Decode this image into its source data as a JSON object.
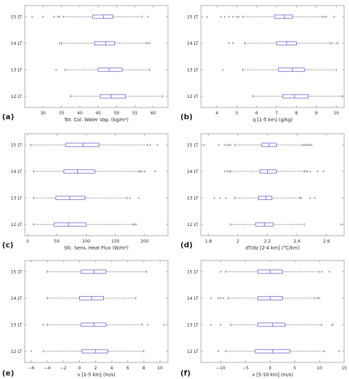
{
  "categories": [
    "12 LT",
    "13 LT",
    "14 LT",
    "15 LT"
  ],
  "colors": {
    "box": "#6a5acd",
    "median": "#6a5acd",
    "whisker": "#555555",
    "outlier": "#555555",
    "frame": "#999999"
  },
  "panels": [
    {
      "tag": "(a)",
      "xlabel": "Tot. Col. Water Vap. (kg/m²)",
      "xlim": [
        25,
        64
      ],
      "ticks": [
        30,
        35,
        40,
        45,
        50,
        55,
        60
      ],
      "boxes": [
        {
          "cat": "12 LT",
          "wlo": 37.5,
          "q1": 45.5,
          "med": 48.5,
          "q3": 52.5,
          "whi": 62.5,
          "outliers": []
        },
        {
          "cat": "13 LT",
          "wlo": 36.0,
          "q1": 45.0,
          "med": 48.0,
          "q3": 51.5,
          "whi": 59.0,
          "outliers": [
            33.5
          ]
        },
        {
          "cat": "14 LT",
          "wlo": 35.0,
          "q1": 44.0,
          "med": 47.0,
          "q3": 49.5,
          "whi": 58.0,
          "outliers": [
            34.5,
            58.5,
            59.0
          ]
        },
        {
          "cat": "15 LT",
          "wlo": 35.5,
          "q1": 43.5,
          "med": 46.5,
          "q3": 49.0,
          "whi": 57.0,
          "outliers": [
            27.0,
            30.0,
            33.0,
            34.0,
            34.5,
            58.5
          ]
        }
      ]
    },
    {
      "tag": "(b)",
      "xlabel": "q [1-5 km] (g/kg)",
      "xlim": [
        3.2,
        10.4
      ],
      "ticks": [
        4,
        5,
        6,
        7,
        8,
        9,
        10
      ],
      "boxes": [
        {
          "cat": "12 LT",
          "wlo": 5.8,
          "q1": 7.3,
          "med": 7.9,
          "q3": 8.6,
          "whi": 10.3,
          "outliers": []
        },
        {
          "cat": "13 LT",
          "wlo": 5.3,
          "q1": 7.1,
          "med": 7.8,
          "q3": 8.4,
          "whi": 10.0,
          "outliers": [
            4.3
          ]
        },
        {
          "cat": "14 LT",
          "wlo": 5.4,
          "q1": 7.0,
          "med": 7.5,
          "q3": 8.0,
          "whi": 9.7,
          "outliers": [
            4.6,
            4.8,
            9.8,
            10.0,
            10.1
          ]
        },
        {
          "cat": "15 LT",
          "wlo": 5.3,
          "q1": 6.9,
          "med": 7.4,
          "q3": 7.8,
          "whi": 9.3,
          "outliers": [
            3.5,
            4.2,
            4.4,
            4.6,
            4.8,
            5.0,
            5.1,
            9.4,
            9.5,
            9.9
          ]
        }
      ]
    },
    {
      "tag": "(c)",
      "xlabel": "Sfc. Sens. Heat Flux (W/m²)",
      "xlim": [
        -5,
        240
      ],
      "ticks": [
        0,
        50,
        100,
        150,
        200
      ],
      "boxes": [
        {
          "cat": "12 LT",
          "wlo": 10,
          "q1": 45,
          "med": 70,
          "q3": 100,
          "whi": 180,
          "outliers": [
            183,
            185
          ]
        },
        {
          "cat": "13 LT",
          "wlo": 10,
          "q1": 48,
          "med": 72,
          "q3": 98,
          "whi": 170,
          "outliers": [
            175,
            190
          ]
        },
        {
          "cat": "14 LT",
          "wlo": 10,
          "q1": 62,
          "med": 85,
          "q3": 115,
          "whi": 190,
          "outliers": [
            192,
            195,
            200,
            218
          ]
        },
        {
          "cat": "15 LT",
          "wlo": 5,
          "q1": 65,
          "med": 95,
          "q3": 122,
          "whi": 205,
          "outliers": [
            210,
            222
          ]
        }
      ]
    },
    {
      "tag": "(d)",
      "xlabel": "dT/dz [2-4 km] (°C/km)",
      "xlim": [
        1.75,
        2.72
      ],
      "ticks": [
        1.8,
        2.0,
        2.2,
        2.4,
        2.6
      ],
      "boxes": [
        {
          "cat": "12 LT",
          "wlo": 1.95,
          "q1": 2.12,
          "med": 2.18,
          "q3": 2.24,
          "whi": 2.45,
          "outliers": [
            2.7
          ]
        },
        {
          "cat": "13 LT",
          "wlo": 1.98,
          "q1": 2.14,
          "med": 2.19,
          "q3": 2.23,
          "whi": 2.42,
          "outliers": [
            1.84,
            1.88,
            1.92,
            2.43,
            2.49,
            2.52
          ]
        },
        {
          "cat": "14 LT",
          "wlo": 1.95,
          "q1": 2.15,
          "med": 2.2,
          "q3": 2.26,
          "whi": 2.45,
          "outliers": [
            1.91,
            1.93,
            1.94,
            2.46,
            2.47,
            2.49,
            2.54,
            2.58
          ]
        },
        {
          "cat": "15 LT",
          "wlo": 1.98,
          "q1": 2.16,
          "med": 2.21,
          "q3": 2.26,
          "whi": 2.44,
          "outliers": [
            1.77,
            1.87,
            1.91,
            1.93,
            1.94,
            1.95,
            2.45,
            2.46,
            2.47,
            2.48,
            2.49,
            2.5
          ]
        }
      ]
    },
    {
      "tag": "(e)",
      "xlabel": "v [1-5 km] (m/s)",
      "xlim": [
        -6.8,
        11.0
      ],
      "ticks": [
        -6,
        -4,
        -2,
        0,
        2,
        4,
        6,
        8,
        10
      ],
      "boxes": [
        {
          "cat": "12 LT",
          "wlo": -4.5,
          "q1": 0.3,
          "med": 2.0,
          "q3": 3.5,
          "whi": 8.0,
          "outliers": [
            -6.0
          ]
        },
        {
          "cat": "13 LT",
          "wlo": -4.0,
          "q1": 0.2,
          "med": 1.8,
          "q3": 3.3,
          "whi": 7.8,
          "outliers": [
            -4.5,
            8.5,
            10.5
          ]
        },
        {
          "cat": "14 LT",
          "wlo": -4.0,
          "q1": 0.0,
          "med": 1.5,
          "q3": 3.0,
          "whi": 7.0,
          "outliers": []
        },
        {
          "cat": "15 LT",
          "wlo": -4.0,
          "q1": 0.2,
          "med": 1.8,
          "q3": 3.3,
          "whi": 8.3,
          "outliers": []
        }
      ]
    },
    {
      "tag": "(f)",
      "xlabel": "v [5-10 km] (m/s)",
      "xlim": [
        -14,
        15
      ],
      "ticks": [
        -10,
        -5,
        0,
        5,
        10,
        15
      ],
      "boxes": [
        {
          "cat": "12 LT",
          "wlo": -9.0,
          "q1": -3.0,
          "med": 0.5,
          "q3": 4.0,
          "whi": 11.0,
          "outliers": [
            -10.5,
            14.0
          ]
        },
        {
          "cat": "13 LT",
          "wlo": -8.0,
          "q1": -2.5,
          "med": 0.5,
          "q3": 3.0,
          "whi": 10.5,
          "outliers": [
            -12.0,
            -10.0,
            12.5,
            12.7
          ]
        },
        {
          "cat": "14 LT",
          "wlo": -8.5,
          "q1": -2.5,
          "med": 0.0,
          "q3": 2.5,
          "whi": 9.0,
          "outliers": [
            -12.0,
            -10.5,
            -10.0,
            -9.5,
            9.5,
            9.8,
            10.0
          ]
        },
        {
          "cat": "15 LT",
          "wlo": -9.0,
          "q1": -2.5,
          "med": 0.0,
          "q3": 2.5,
          "whi": 10.0,
          "outliers": [
            -10.0,
            10.5,
            12.0
          ]
        }
      ]
    }
  ],
  "chart_data": [
    {
      "type": "box",
      "categories": [
        "12 LT",
        "13 LT",
        "14 LT",
        "15 LT"
      ],
      "xlabel": "Tot. Col. Water Vap. (kg/m²)",
      "xlim": [
        25,
        64
      ],
      "orientation": "horizontal"
    },
    {
      "type": "box",
      "categories": [
        "12 LT",
        "13 LT",
        "14 LT",
        "15 LT"
      ],
      "xlabel": "q [1-5 km] (g/kg)",
      "xlim": [
        3.2,
        10.4
      ],
      "orientation": "horizontal"
    },
    {
      "type": "box",
      "categories": [
        "12 LT",
        "13 LT",
        "14 LT",
        "15 LT"
      ],
      "xlabel": "Sfc. Sens. Heat Flux (W/m²)",
      "xlim": [
        -5,
        240
      ],
      "orientation": "horizontal"
    },
    {
      "type": "box",
      "categories": [
        "12 LT",
        "13 LT",
        "14 LT",
        "15 LT"
      ],
      "xlabel": "dT/dz [2-4 km] (°C/km)",
      "xlim": [
        1.75,
        2.72
      ],
      "orientation": "horizontal"
    },
    {
      "type": "box",
      "categories": [
        "12 LT",
        "13 LT",
        "14 LT",
        "15 LT"
      ],
      "xlabel": "v [1-5 km] (m/s)",
      "xlim": [
        -6.8,
        11.0
      ],
      "orientation": "horizontal"
    },
    {
      "type": "box",
      "categories": [
        "12 LT",
        "13 LT",
        "14 LT",
        "15 LT"
      ],
      "xlabel": "v [5-10 km] (m/s)",
      "xlim": [
        -14,
        15
      ],
      "orientation": "horizontal"
    }
  ]
}
